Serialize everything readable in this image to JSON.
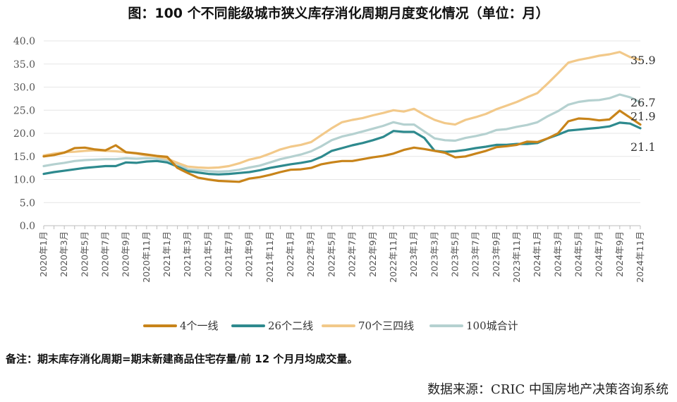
{
  "title": "图：100 个不同能级城市狭义库存消化周期月度变化情况（单位：月）",
  "note": "备注：期末库存消化周期=期末新建商品住宅存量/前 12 个月月均成交量。",
  "source": "数据来源：CRIC 中国房地产决策咨询系统",
  "chart_data": {
    "type": "line",
    "ylim": [
      0,
      40
    ],
    "yticks": [
      "0.0",
      "5.0",
      "10.0",
      "15.0",
      "20.0",
      "25.0",
      "30.0",
      "35.0",
      "40.0"
    ],
    "x": [
      "2020年1月",
      "2020年2月",
      "2020年3月",
      "2020年4月",
      "2020年5月",
      "2020年6月",
      "2020年7月",
      "2020年8月",
      "2020年9月",
      "2020年10月",
      "2020年11月",
      "2020年12月",
      "2021年1月",
      "2021年2月",
      "2021年3月",
      "2021年4月",
      "2021年5月",
      "2021年6月",
      "2021年7月",
      "2021年8月",
      "2021年9月",
      "2021年10月",
      "2021年11月",
      "2021年12月",
      "2022年1月",
      "2022年2月",
      "2022年3月",
      "2022年4月",
      "2022年5月",
      "2022年6月",
      "2022年7月",
      "2022年8月",
      "2022年9月",
      "2022年10月",
      "2022年11月",
      "2022年12月",
      "2023年1月",
      "2023年2月",
      "2023年3月",
      "2023年4月",
      "2023年5月",
      "2023年6月",
      "2023年7月",
      "2023年8月",
      "2023年9月",
      "2023年10月",
      "2023年11月",
      "2023年12月",
      "2024年1月",
      "2024年2月",
      "2024年3月",
      "2024年4月",
      "2024年5月",
      "2024年6月",
      "2024年7月",
      "2024年8月",
      "2024年9月",
      "2024年10月",
      "2024年11月"
    ],
    "xtick_labels": [
      "2020年1月",
      "2020年3月",
      "2020年5月",
      "2020年7月",
      "2020年9月",
      "2020年11月",
      "2021年1月",
      "2021年3月",
      "2021年5月",
      "2021年7月",
      "2021年9月",
      "2021年11月",
      "2022年1月",
      "2022年3月",
      "2022年5月",
      "2022年7月",
      "2022年9月",
      "2022年11月",
      "2023年1月",
      "2023年3月",
      "2023年5月",
      "2023年7月",
      "2023年9月",
      "2023年11月",
      "2024年1月",
      "2024年3月",
      "2024年5月",
      "2024年7月",
      "2024年9月",
      "2024年11月"
    ],
    "series": [
      {
        "name": "4个一线",
        "color": "#C8841A",
        "end_label": "21.9",
        "values": [
          15.0,
          15.3,
          15.8,
          16.8,
          16.9,
          16.5,
          16.3,
          17.4,
          15.9,
          15.7,
          15.4,
          15.1,
          14.9,
          12.5,
          11.4,
          10.4,
          10.0,
          9.7,
          9.6,
          9.5,
          10.2,
          10.5,
          11.0,
          11.6,
          12.1,
          12.2,
          12.5,
          13.3,
          13.7,
          14.0,
          14.0,
          14.4,
          14.8,
          15.1,
          15.6,
          16.4,
          16.9,
          16.6,
          16.2,
          15.8,
          14.8,
          15.0,
          15.6,
          16.2,
          17.0,
          17.2,
          17.5,
          18.2,
          18.1,
          18.9,
          20.0,
          22.6,
          23.2,
          23.1,
          22.8,
          23.0,
          24.9,
          23.4,
          21.9
        ]
      },
      {
        "name": "26个二线",
        "color": "#2E8A8E",
        "end_label": "21.1",
        "values": [
          11.2,
          11.6,
          11.9,
          12.2,
          12.5,
          12.7,
          12.9,
          12.9,
          13.7,
          13.6,
          13.9,
          14.0,
          13.7,
          12.8,
          11.8,
          11.5,
          11.2,
          11.1,
          11.2,
          11.4,
          11.6,
          12.0,
          12.5,
          12.9,
          13.3,
          13.6,
          14.0,
          14.9,
          16.2,
          16.8,
          17.4,
          17.9,
          18.5,
          19.2,
          20.5,
          20.3,
          20.3,
          19.0,
          16.2,
          16.0,
          16.1,
          16.4,
          16.8,
          17.1,
          17.5,
          17.5,
          17.7,
          17.7,
          17.9,
          18.9,
          19.7,
          20.6,
          20.8,
          21.0,
          21.2,
          21.5,
          22.3,
          22.1,
          21.1
        ]
      },
      {
        "name": "70个三四线",
        "color": "#F2C98A",
        "end_label": "35.9",
        "values": [
          15.2,
          15.6,
          15.9,
          16.0,
          16.2,
          16.3,
          16.2,
          16.1,
          15.9,
          15.6,
          15.2,
          15.0,
          14.5,
          13.6,
          12.8,
          12.6,
          12.5,
          12.6,
          12.9,
          13.5,
          14.3,
          14.8,
          15.6,
          16.5,
          17.1,
          17.5,
          18.1,
          19.6,
          21.1,
          22.4,
          22.9,
          23.3,
          23.9,
          24.4,
          25.0,
          24.7,
          25.3,
          24.0,
          22.9,
          22.2,
          21.9,
          22.9,
          23.5,
          24.2,
          25.2,
          26.0,
          26.8,
          27.8,
          28.7,
          30.8,
          33.0,
          35.3,
          35.9,
          36.3,
          36.8,
          37.1,
          37.6,
          36.5,
          35.9
        ]
      },
      {
        "name": "100城合计",
        "color": "#B5D1D0",
        "end_label": "26.7",
        "values": [
          12.9,
          13.3,
          13.6,
          14.0,
          14.2,
          14.3,
          14.4,
          14.4,
          14.6,
          14.5,
          14.6,
          14.5,
          14.2,
          13.4,
          12.2,
          12.0,
          11.8,
          11.7,
          11.8,
          12.1,
          12.6,
          13.0,
          13.7,
          14.4,
          14.9,
          15.4,
          16.1,
          17.2,
          18.5,
          19.3,
          19.8,
          20.4,
          21.0,
          21.6,
          22.4,
          21.9,
          21.9,
          20.4,
          18.9,
          18.5,
          18.4,
          19.0,
          19.4,
          19.9,
          20.7,
          20.9,
          21.4,
          21.8,
          22.4,
          23.7,
          24.8,
          26.2,
          26.8,
          27.1,
          27.2,
          27.6,
          28.4,
          27.8,
          26.7
        ]
      }
    ]
  }
}
